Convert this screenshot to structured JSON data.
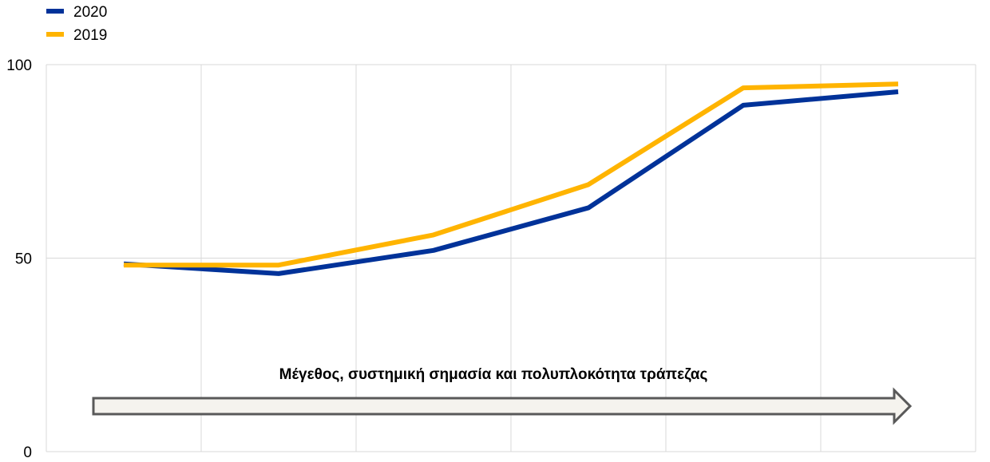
{
  "chart_data": {
    "type": "line",
    "x": [
      1,
      2,
      3,
      4,
      5,
      6
    ],
    "ylim": [
      0,
      100
    ],
    "yticks": [
      0,
      50,
      100
    ],
    "grid": {
      "vertical": true,
      "horizontal": true
    },
    "legend_position": "top-left",
    "series": [
      {
        "name": "2020",
        "color": "#003299",
        "values": [
          48.5,
          46,
          52,
          63,
          89.5,
          93
        ]
      },
      {
        "name": "2019",
        "color": "#FFB400",
        "values": [
          48.2,
          48.2,
          56,
          69,
          94,
          95
        ]
      }
    ],
    "annotation": {
      "text": "Μέγεθος, συστημική σημασία και πολυπλοκότητα τράπεζας",
      "arrow_fill": "#f5f3ee",
      "arrow_stroke": "#595959"
    }
  }
}
